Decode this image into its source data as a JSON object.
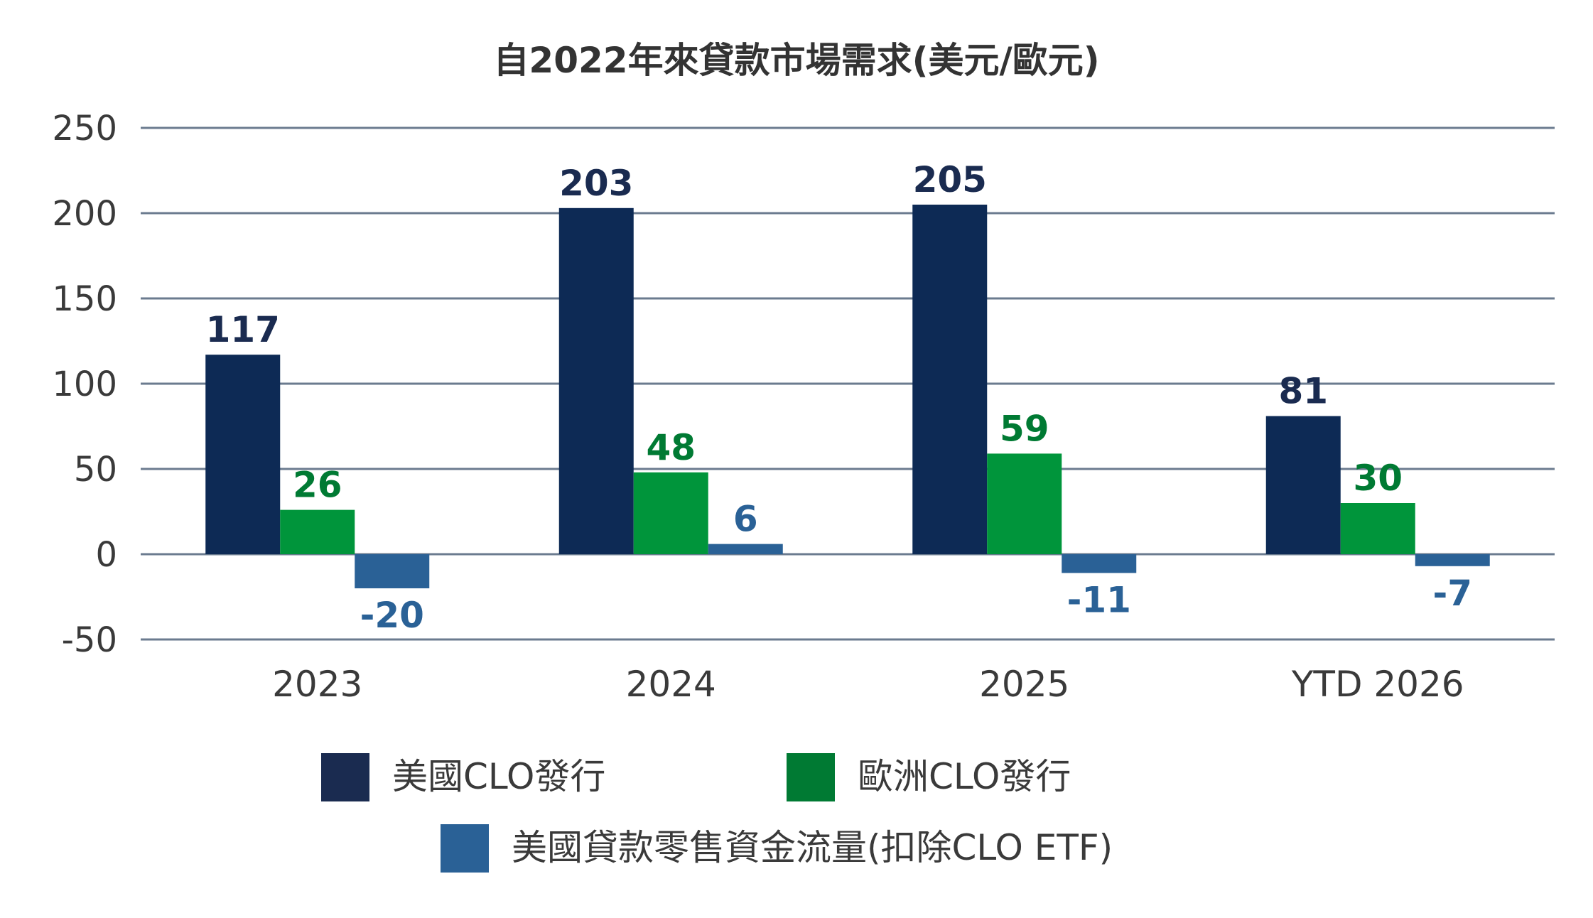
{
  "chart_data": {
    "type": "bar",
    "title": "自2022年來貸款市場需求(美元/歐元)",
    "categories": [
      "2023",
      "2024",
      "2025",
      "YTD 2026"
    ],
    "series": [
      {
        "name": "美國CLO發行",
        "values": [
          117,
          203,
          205,
          81
        ],
        "color": "#0d2a55",
        "label_color": "#1a2b50"
      },
      {
        "name": "歐洲CLO發行",
        "values": [
          26,
          48,
          59,
          30
        ],
        "color": "#00953b",
        "label_color": "#007a33"
      },
      {
        "name": "美國貸款零售資金流量(扣除CLO ETF)",
        "values": [
          -20,
          6,
          -11,
          -7
        ],
        "color": "#2a6196",
        "label_color": "#2a6196"
      }
    ],
    "data_labels": [
      [
        "117",
        "203",
        "205",
        "81"
      ],
      [
        "26",
        "48",
        "59",
        "30"
      ],
      [
        "-20",
        "6",
        "-11",
        "-7"
      ]
    ],
    "ylim": [
      -50,
      250
    ],
    "yticks": [
      250,
      200,
      150,
      100,
      50,
      0,
      -50
    ],
    "ytick_labels": [
      "250",
      "200",
      "150",
      "100",
      "50",
      "0",
      "-50"
    ],
    "grid": true,
    "legend_position": "bottom",
    "xlabel": "",
    "ylabel": ""
  }
}
